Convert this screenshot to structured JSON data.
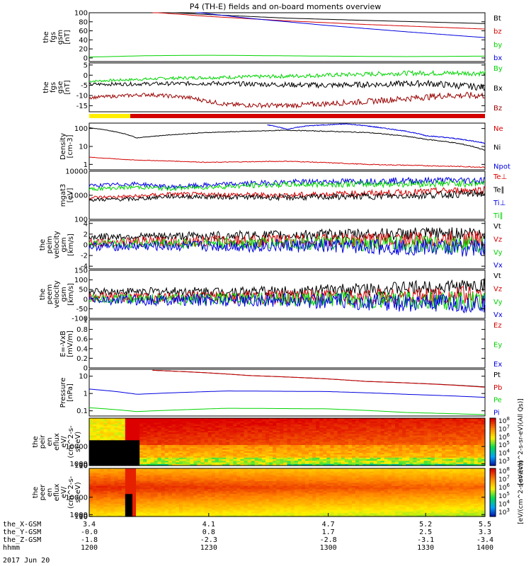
{
  "title": "P4 (TH-E) fields and on-board moments overview",
  "date_label": "2017 Jun 20",
  "colors": {
    "black": "#000000",
    "red": "#d40000",
    "green": "#00d400",
    "blue": "#0000e0",
    "darkred": "#990000",
    "yellow": "#ffee00"
  },
  "chart_data": [
    {
      "id": "fgs-gsm",
      "type": "line",
      "ylabel": [
        "the",
        "fgs",
        "gsm",
        "[nT]"
      ],
      "ylim": [
        -8,
        100
      ],
      "yticks": [
        0,
        20,
        40,
        60,
        80,
        100
      ],
      "series": [
        {
          "name": "Bt",
          "color": "#000000",
          "points": [
            [
              0.19,
              101
            ],
            [
              0.3,
              96
            ],
            [
              0.5,
              88
            ],
            [
              0.7,
              83
            ],
            [
              1.0,
              76
            ]
          ]
        },
        {
          "name": "bz",
          "color": "#d40000",
          "points": [
            [
              0.16,
              101
            ],
            [
              0.3,
              92
            ],
            [
              0.5,
              82
            ],
            [
              0.7,
              74
            ],
            [
              1.0,
              64
            ]
          ]
        },
        {
          "name": "by",
          "color": "#00d400",
          "points": [
            [
              0,
              2
            ],
            [
              0.15,
              5
            ],
            [
              0.3,
              6
            ],
            [
              0.6,
              4
            ],
            [
              0.8,
              3
            ],
            [
              1.0,
              4
            ]
          ]
        },
        {
          "name": "bx",
          "color": "#0000e0",
          "points": [
            [
              0.27,
              101
            ],
            [
              0.4,
              88
            ],
            [
              0.6,
              72
            ],
            [
              0.8,
              58
            ],
            [
              1.0,
              45
            ]
          ]
        }
      ]
    },
    {
      "id": "fgs-gse",
      "type": "line",
      "ylabel": [
        "the",
        "fgs",
        "gse",
        "[nT]"
      ],
      "ylim": [
        -18,
        6
      ],
      "yticks": [
        -15,
        -10,
        -5,
        0,
        5
      ],
      "series": [
        {
          "name": "By",
          "color": "#00d400",
          "points": [
            [
              0,
              -3
            ],
            [
              0.2,
              -1.5
            ],
            [
              0.5,
              -0.5
            ],
            [
              0.8,
              1
            ],
            [
              1.0,
              1
            ]
          ]
        },
        {
          "name": "Bx",
          "color": "#000000",
          "points": [
            [
              0,
              -4.5
            ],
            [
              0.3,
              -4
            ],
            [
              0.6,
              -5
            ],
            [
              0.85,
              -4
            ],
            [
              1.0,
              -6
            ]
          ]
        },
        {
          "name": "Bz",
          "color": "#990000",
          "points": [
            [
              0,
              -11
            ],
            [
              0.15,
              -9.5
            ],
            [
              0.25,
              -11
            ],
            [
              0.35,
              -14.5
            ],
            [
              0.5,
              -15
            ],
            [
              0.7,
              -13
            ],
            [
              0.9,
              -10
            ],
            [
              1.0,
              -10
            ]
          ]
        }
      ]
    },
    {
      "id": "density",
      "type": "line",
      "log": true,
      "ylabel": [
        "Density",
        "[cm-3]"
      ],
      "ylim": [
        0.5,
        200
      ],
      "yticks": [
        1,
        10,
        100
      ],
      "series": [
        {
          "name": "Ne",
          "color": "#d40000",
          "points": [
            [
              0,
              2.5
            ],
            [
              0.1,
              1.8
            ],
            [
              0.3,
              1.3
            ],
            [
              0.5,
              1.5
            ],
            [
              0.7,
              1.0
            ],
            [
              1.0,
              0.7
            ]
          ]
        },
        {
          "name": "Ni",
          "color": "#000000",
          "points": [
            [
              0,
              110
            ],
            [
              0.12,
              30
            ],
            [
              0.3,
              60
            ],
            [
              0.5,
              80
            ],
            [
              0.7,
              60
            ],
            [
              0.85,
              25
            ],
            [
              1.0,
              6
            ]
          ]
        },
        {
          "name": "Npot",
          "color": "#0000e0",
          "points": [
            [
              0.45,
              160
            ],
            [
              0.5,
              90
            ],
            [
              0.55,
              140
            ],
            [
              0.65,
              180
            ],
            [
              0.75,
              100
            ],
            [
              0.85,
              40
            ],
            [
              1.0,
              15
            ]
          ]
        }
      ]
    },
    {
      "id": "temperature",
      "type": "line",
      "log": true,
      "ylabel": [
        "mgat3",
        "[eV]"
      ],
      "ylim": [
        100,
        10000
      ],
      "yticks": [
        100,
        1000,
        10000
      ],
      "series": [
        {
          "name": "Te⊥",
          "color": "#d40000",
          "points": [
            [
              0,
              800
            ],
            [
              0.12,
              900
            ],
            [
              0.2,
              1100
            ],
            [
              0.5,
              1000
            ],
            [
              0.8,
              1300
            ],
            [
              1.0,
              1700
            ]
          ]
        },
        {
          "name": "Te∥",
          "color": "#000000",
          "points": [
            [
              0,
              650
            ],
            [
              0.12,
              700
            ],
            [
              0.2,
              900
            ],
            [
              0.5,
              800
            ],
            [
              0.8,
              950
            ],
            [
              1.0,
              1200
            ]
          ]
        },
        {
          "name": "Ti⊥",
          "color": "#0000e0",
          "points": [
            [
              0,
              2500
            ],
            [
              0.12,
              3000
            ],
            [
              0.2,
              2200
            ],
            [
              0.5,
              3500
            ],
            [
              0.8,
              4000
            ],
            [
              1.0,
              4200
            ]
          ]
        },
        {
          "name": "Ti∥",
          "color": "#00d400",
          "points": [
            [
              0,
              1800
            ],
            [
              0.12,
              2200
            ],
            [
              0.2,
              1900
            ],
            [
              0.5,
              2800
            ],
            [
              0.8,
              3000
            ],
            [
              1.0,
              3200
            ]
          ]
        }
      ]
    },
    {
      "id": "peim-velocity",
      "type": "line",
      "ylabel": [
        "the",
        "peim",
        "velocity",
        "gsm",
        "[km/s]"
      ],
      "ylim": [
        -4.5,
        4.5
      ],
      "yticks": [
        -4,
        -2,
        0,
        2,
        4
      ],
      "series": [
        {
          "name": "Vt",
          "color": "#000000",
          "points": [
            [
              0,
              1.5
            ],
            [
              0.5,
              1.8
            ],
            [
              1.0,
              2.2
            ]
          ]
        },
        {
          "name": "Vz",
          "color": "#d40000",
          "points": [
            [
              0,
              0.5
            ],
            [
              0.5,
              0.8
            ],
            [
              1.0,
              1.0
            ]
          ]
        },
        {
          "name": "Vy",
          "color": "#00d400",
          "points": [
            [
              0,
              0.2
            ],
            [
              0.5,
              0.3
            ],
            [
              1.0,
              0.0
            ]
          ]
        },
        {
          "name": "Vx",
          "color": "#0000e0",
          "points": [
            [
              0,
              -0.3
            ],
            [
              0.5,
              -0.2
            ],
            [
              1.0,
              -0.6
            ]
          ]
        }
      ]
    },
    {
      "id": "peem-velocity",
      "type": "line",
      "ylabel": [
        "the",
        "peem",
        "velocity",
        "gsm",
        "[km/s]"
      ],
      "ylim": [
        -100,
        150
      ],
      "yticks": [
        -100,
        -50,
        0,
        50,
        100,
        150
      ],
      "series": [
        {
          "name": "Vt",
          "color": "#000000",
          "points": [
            [
              0,
              40
            ],
            [
              0.5,
              40
            ],
            [
              1.0,
              70
            ]
          ]
        },
        {
          "name": "Vz",
          "color": "#d40000",
          "points": [
            [
              0,
              10
            ],
            [
              0.5,
              10
            ],
            [
              1.0,
              20
            ]
          ]
        },
        {
          "name": "Vy",
          "color": "#00d400",
          "points": [
            [
              0,
              0
            ],
            [
              0.5,
              0
            ],
            [
              1.0,
              -10
            ]
          ]
        },
        {
          "name": "Vx",
          "color": "#0000e0",
          "points": [
            [
              0,
              -5
            ],
            [
              0.5,
              -5
            ],
            [
              1.0,
              -30
            ]
          ]
        }
      ]
    },
    {
      "id": "efield",
      "type": "line",
      "ylabel": [
        "E=-VxB",
        "[mV/m]"
      ],
      "ylim": [
        0,
        1
      ],
      "yticks": [
        0.0,
        0.2,
        0.4,
        0.6,
        0.8,
        1.0
      ],
      "series": [
        {
          "name": "Ez",
          "color": "#d40000",
          "points": []
        },
        {
          "name": "Ey",
          "color": "#00d400",
          "points": []
        },
        {
          "name": "Ex",
          "color": "#0000e0",
          "points": []
        }
      ]
    },
    {
      "id": "pressure",
      "type": "line",
      "log": true,
      "ylabel": [
        "Pressure",
        "[nPa]"
      ],
      "ylim": [
        0.05,
        25
      ],
      "yticks": [
        0.1,
        1.0,
        10.0
      ],
      "series": [
        {
          "name": "Pt",
          "color": "#000000",
          "points": [
            [
              0.16,
              22
            ],
            [
              0.4,
              11
            ],
            [
              0.7,
              5
            ],
            [
              1.0,
              2.4
            ]
          ]
        },
        {
          "name": "Pb",
          "color": "#d40000",
          "points": [
            [
              0.16,
              22
            ],
            [
              0.4,
              11
            ],
            [
              0.7,
              5
            ],
            [
              1.0,
              2.3
            ]
          ]
        },
        {
          "name": "Pe",
          "color": "#00d400",
          "points": [
            [
              0,
              0.15
            ],
            [
              0.12,
              0.09
            ],
            [
              0.35,
              0.14
            ],
            [
              0.6,
              0.13
            ],
            [
              0.8,
              0.08
            ],
            [
              1.0,
              0.06
            ]
          ]
        },
        {
          "name": "Pi",
          "color": "#0000e0",
          "points": [
            [
              0,
              1.8
            ],
            [
              0.12,
              0.9
            ],
            [
              0.35,
              1.4
            ],
            [
              0.6,
              1.3
            ],
            [
              0.8,
              0.9
            ],
            [
              1.0,
              0.6
            ]
          ]
        }
      ]
    },
    {
      "id": "peir-spectrogram",
      "type": "heatmap",
      "ylabel": [
        "the",
        "peir",
        "en",
        "eflux",
        "eV/",
        "(cm^2-s-",
        "sr-eV)"
      ],
      "ylim": [
        5,
        25000
      ],
      "yticks": [
        10,
        100,
        1000,
        10000
      ],
      "colorbar_label": "[eV/(cm^2-s-sr-eV)(All Qs)]",
      "colorbar_exponents": [
        "3",
        "4",
        "5",
        "6",
        "7",
        "8"
      ]
    },
    {
      "id": "peer-spectrogram",
      "type": "heatmap",
      "ylabel": [
        "the",
        "peer",
        "en",
        "eflux",
        "eV/",
        "(cm^2-s-",
        "sr-eV)"
      ],
      "ylim": [
        5,
        25000
      ],
      "yticks": [
        10,
        100,
        1000,
        10000
      ],
      "colorbar_label": "[eV/(cm^2-s-sr-eV)]",
      "colorbar_exponents": [
        "3",
        "4",
        "5",
        "6",
        "7",
        "8"
      ]
    }
  ],
  "axis_footer": [
    {
      "label": "the_X-GSM",
      "values": [
        "3.4",
        "4.1",
        "4.7",
        "5.2",
        "5.5"
      ]
    },
    {
      "label": "the_Y-GSM",
      "values": [
        "-0.0",
        "0.8",
        "1.7",
        "2.5",
        "3.3"
      ]
    },
    {
      "label": "the_Z-GSM",
      "values": [
        "-1.8",
        "-2.3",
        "-2.8",
        "-3.1",
        "-3.4"
      ]
    },
    {
      "label": "hhmm",
      "values": [
        "1200",
        "1230",
        "1300",
        "1330",
        "1400"
      ]
    }
  ]
}
